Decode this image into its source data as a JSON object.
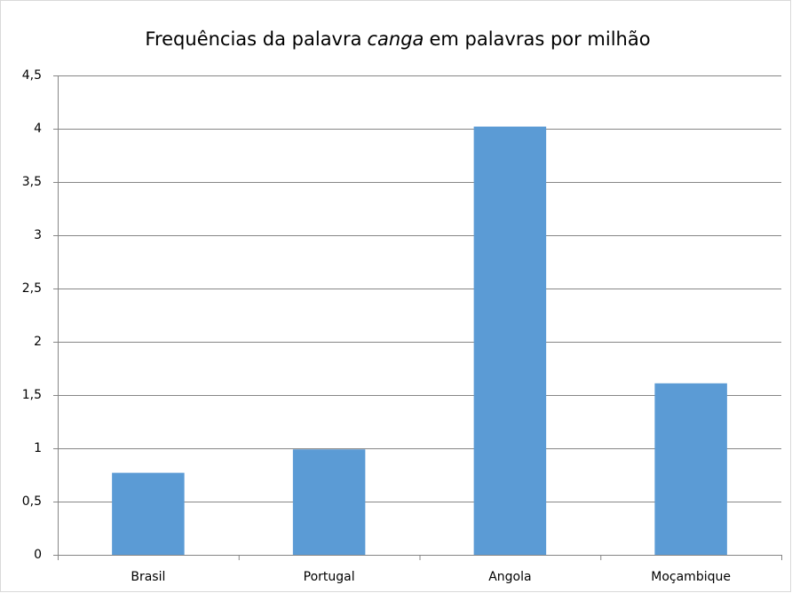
{
  "chart_data": {
    "type": "bar",
    "title": [
      "Frequências da palavra",
      "canga",
      "em palavras por milhão"
    ],
    "categories": [
      "Brasil",
      "Portugal",
      "Angola",
      "Moçambique"
    ],
    "values": [
      0.77,
      0.99,
      4.02,
      1.61
    ],
    "color": "#5b9bd5",
    "ylim": [
      0,
      4.5
    ],
    "yticks": [
      0,
      {
        "value": 0.5,
        "label": "0,5"
      },
      1,
      {
        "value": 1.5,
        "label": "1,5"
      },
      2,
      {
        "value": 2.5,
        "label": "2,5"
      },
      3,
      {
        "value": 3.5,
        "label": "3,5"
      },
      4,
      {
        "value": 4.5,
        "label": "4,5"
      }
    ],
    "grid": true
  }
}
